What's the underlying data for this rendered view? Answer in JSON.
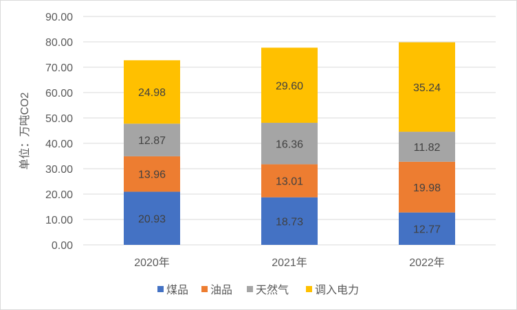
{
  "chart_data": {
    "type": "bar",
    "stacked": true,
    "title": "",
    "xlabel": "",
    "ylabel": "单位：万吨CO2",
    "ylim": [
      0,
      90
    ],
    "ytick_step": 10,
    "ytick_labels": [
      "0.00",
      "10.00",
      "20.00",
      "30.00",
      "40.00",
      "50.00",
      "60.00",
      "70.00",
      "80.00",
      "90.00"
    ],
    "grid": true,
    "legend_position": "bottom",
    "categories": [
      "2020年",
      "2021年",
      "2022年"
    ],
    "series": [
      {
        "name": "煤品",
        "color": "#4472C4",
        "values": [
          20.93,
          18.73,
          12.77
        ]
      },
      {
        "name": "油品",
        "color": "#ED7D31",
        "values": [
          13.96,
          13.01,
          19.98
        ]
      },
      {
        "name": "天然气",
        "color": "#A5A5A5",
        "values": [
          12.87,
          16.36,
          11.82
        ]
      },
      {
        "name": "调入电力",
        "color": "#FFC000",
        "values": [
          24.98,
          29.6,
          35.24
        ]
      }
    ]
  }
}
